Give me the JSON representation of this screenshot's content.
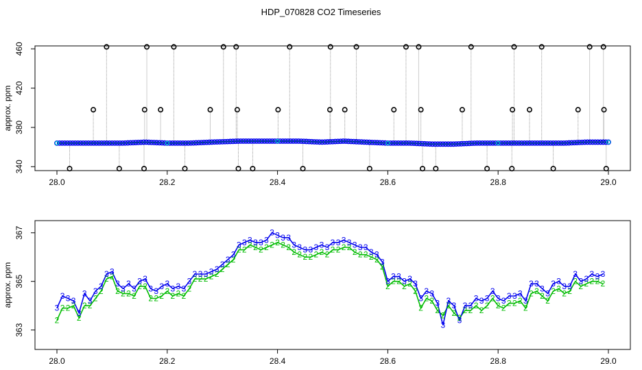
{
  "figure": {
    "title": "HDP_070828  CO2 Timeseries"
  },
  "colors": {
    "blue": "#0000ee",
    "green": "#00bb00",
    "cyan": "#00cccc",
    "gray": "#999999",
    "black": "#000000"
  },
  "chart_data": [
    {
      "type": "scatter",
      "title": "",
      "xlabel": "",
      "ylabel": "approx. ppm",
      "xlim": [
        28.0,
        29.0
      ],
      "ylim": [
        336,
        463
      ],
      "x_ticks": [
        28.0,
        28.2,
        28.4,
        28.6,
        28.8,
        29.0
      ],
      "x_tick_labels": [
        "28.0",
        "28.2",
        "28.4",
        "28.6",
        "28.8",
        "29.0"
      ],
      "y_ticks": [
        340,
        380,
        420,
        460
      ],
      "y_tick_labels": [
        "340",
        "380",
        "420",
        "460"
      ],
      "grid": false,
      "series": [
        {
          "x": [
            28.0,
            28.04,
            28.08,
            28.12,
            28.16,
            28.2,
            28.24,
            28.28,
            28.33,
            28.36,
            28.4,
            28.44,
            28.48,
            28.52,
            28.56,
            28.6,
            28.64,
            28.68,
            28.72,
            28.76,
            28.8,
            28.84,
            28.88,
            28.92,
            28.96,
            29.0
          ],
          "values": [
            364,
            364,
            364,
            364,
            365,
            364,
            364,
            365,
            366,
            366,
            366,
            366,
            365,
            366,
            365,
            364,
            364,
            363,
            363,
            364,
            364,
            364,
            364,
            364,
            365,
            365
          ]
        }
      ],
      "spikes": {
        "high": {
          "y": 462,
          "x": [
            28.09,
            28.163,
            28.212,
            28.302,
            28.325,
            28.422,
            28.496,
            28.543,
            28.633,
            28.656,
            28.751,
            28.829,
            28.879,
            28.966,
            28.991
          ]
        },
        "mid": {
          "y": 398,
          "x": [
            28.066,
            28.159,
            28.188,
            28.278,
            28.327,
            28.401,
            28.495,
            28.522,
            28.611,
            28.66,
            28.735,
            28.826,
            28.857,
            28.945,
            28.992
          ]
        },
        "low": {
          "y": 338,
          "x": [
            28.023,
            28.113,
            28.158,
            28.232,
            28.329,
            28.355,
            28.446,
            28.567,
            28.663,
            28.687,
            28.78,
            28.825,
            28.9,
            28.996
          ]
        }
      }
    },
    {
      "type": "line",
      "title": "",
      "xlabel": "",
      "ylabel": "approx. ppm",
      "xlim": [
        28.0,
        29.0
      ],
      "ylim": [
        362.2,
        367.5
      ],
      "x_ticks": [
        28.0,
        28.2,
        28.4,
        28.6,
        28.8,
        29.0
      ],
      "x_tick_labels": [
        "28.0",
        "28.2",
        "28.4",
        "28.6",
        "28.8",
        "29.0"
      ],
      "y_ticks": [
        363,
        365,
        367
      ],
      "y_tick_labels": [
        "363",
        "365",
        "367"
      ],
      "grid": false,
      "series": [
        {
          "marker": "3",
          "x": [
            28.0,
            28.01,
            28.02,
            28.03,
            28.04,
            28.05,
            28.06,
            28.07,
            28.08,
            28.09,
            28.1,
            28.11,
            28.12,
            28.13,
            28.14,
            28.15,
            28.16,
            28.17,
            28.18,
            28.19,
            28.2,
            28.21,
            28.22,
            28.23,
            28.24,
            28.25,
            28.26,
            28.27,
            28.28,
            28.29,
            28.3,
            28.31,
            28.32,
            28.33,
            28.34,
            28.35,
            28.36,
            28.37,
            28.38,
            28.39,
            28.4,
            28.41,
            28.42,
            28.43,
            28.44,
            28.45,
            28.46,
            28.47,
            28.48,
            28.49,
            28.5,
            28.51,
            28.52,
            28.53,
            28.54,
            28.55,
            28.56,
            28.57,
            28.58,
            28.59,
            28.6,
            28.61,
            28.62,
            28.63,
            28.64,
            28.65,
            28.66,
            28.67,
            28.68,
            28.69,
            28.7,
            28.71,
            28.72,
            28.73,
            28.74,
            28.75,
            28.76,
            28.77,
            28.78,
            28.79,
            28.8,
            28.81,
            28.82,
            28.83,
            28.84,
            28.85,
            28.86,
            28.87,
            28.88,
            28.89,
            28.9,
            28.91,
            28.92,
            28.93,
            28.94,
            28.95,
            28.96,
            28.97,
            28.98,
            28.99
          ],
          "values": [
            363.9,
            364.4,
            364.3,
            364.2,
            363.7,
            364.5,
            364.2,
            364.6,
            364.8,
            365.3,
            365.4,
            364.9,
            364.7,
            364.9,
            364.7,
            365.0,
            365.1,
            364.7,
            364.6,
            364.8,
            364.9,
            364.7,
            364.8,
            364.7,
            365.0,
            365.3,
            365.3,
            365.3,
            365.4,
            365.5,
            365.7,
            365.9,
            366.1,
            366.5,
            366.6,
            366.7,
            366.6,
            366.6,
            366.7,
            367.0,
            366.9,
            366.8,
            366.8,
            366.5,
            366.4,
            366.3,
            366.3,
            366.4,
            366.5,
            366.4,
            366.6,
            366.6,
            366.7,
            366.6,
            366.5,
            366.4,
            366.4,
            366.2,
            366.1,
            365.8,
            365.0,
            365.2,
            365.2,
            365.0,
            365.1,
            364.9,
            364.3,
            364.6,
            364.5,
            364.1,
            363.2,
            364.2,
            364.0,
            363.4,
            364.0,
            364.0,
            364.3,
            364.2,
            364.3,
            364.6,
            364.3,
            364.2,
            364.4,
            364.4,
            364.5,
            364.2,
            364.9,
            364.9,
            364.7,
            364.5,
            364.9,
            365.0,
            364.8,
            364.8,
            365.3,
            365.0,
            365.1,
            365.3,
            365.2,
            365.3
          ]
        },
        {
          "marker": "2",
          "x": [
            28.0,
            28.01,
            28.02,
            28.03,
            28.04,
            28.05,
            28.06,
            28.07,
            28.08,
            28.09,
            28.1,
            28.11,
            28.12,
            28.13,
            28.14,
            28.15,
            28.16,
            28.17,
            28.18,
            28.19,
            28.2,
            28.21,
            28.22,
            28.23,
            28.24,
            28.25,
            28.26,
            28.27,
            28.28,
            28.29,
            28.3,
            28.31,
            28.32,
            28.33,
            28.34,
            28.35,
            28.36,
            28.37,
            28.38,
            28.39,
            28.4,
            28.41,
            28.42,
            28.43,
            28.44,
            28.45,
            28.46,
            28.47,
            28.48,
            28.49,
            28.5,
            28.51,
            28.52,
            28.53,
            28.54,
            28.55,
            28.56,
            28.57,
            28.58,
            28.59,
            28.6,
            28.61,
            28.62,
            28.63,
            28.64,
            28.65,
            28.66,
            28.67,
            28.68,
            28.69,
            28.7,
            28.71,
            28.72,
            28.73,
            28.74,
            28.75,
            28.76,
            28.77,
            28.78,
            28.79,
            28.8,
            28.81,
            28.82,
            28.83,
            28.84,
            28.85,
            28.86,
            28.87,
            28.88,
            28.89,
            28.9,
            28.91,
            28.92,
            28.93,
            28.94,
            28.95,
            28.96,
            28.97,
            28.98,
            28.99
          ],
          "values": [
            363.4,
            363.9,
            363.9,
            364.0,
            363.5,
            364.0,
            364.0,
            364.3,
            364.6,
            365.1,
            365.2,
            364.6,
            364.5,
            364.5,
            364.4,
            364.8,
            364.8,
            364.3,
            364.3,
            364.4,
            364.6,
            364.4,
            364.5,
            364.4,
            364.7,
            365.1,
            365.1,
            365.1,
            365.2,
            365.3,
            365.5,
            365.7,
            365.9,
            366.3,
            366.3,
            366.5,
            366.4,
            366.3,
            366.4,
            366.5,
            366.6,
            366.5,
            366.4,
            366.2,
            366.1,
            366.0,
            366.0,
            366.1,
            366.2,
            366.1,
            366.3,
            366.3,
            366.4,
            366.4,
            366.2,
            366.1,
            366.1,
            366.0,
            365.9,
            365.6,
            364.8,
            365.0,
            365.0,
            364.8,
            364.9,
            364.6,
            363.9,
            364.3,
            364.2,
            363.8,
            363.6,
            364.0,
            363.7,
            363.5,
            363.8,
            363.8,
            364.0,
            363.8,
            364.0,
            364.3,
            364.0,
            363.9,
            364.1,
            364.1,
            364.2,
            363.9,
            364.5,
            364.6,
            364.4,
            364.2,
            364.6,
            364.7,
            364.5,
            364.6,
            365.0,
            364.8,
            364.9,
            365.0,
            365.0,
            364.9
          ]
        }
      ]
    }
  ]
}
